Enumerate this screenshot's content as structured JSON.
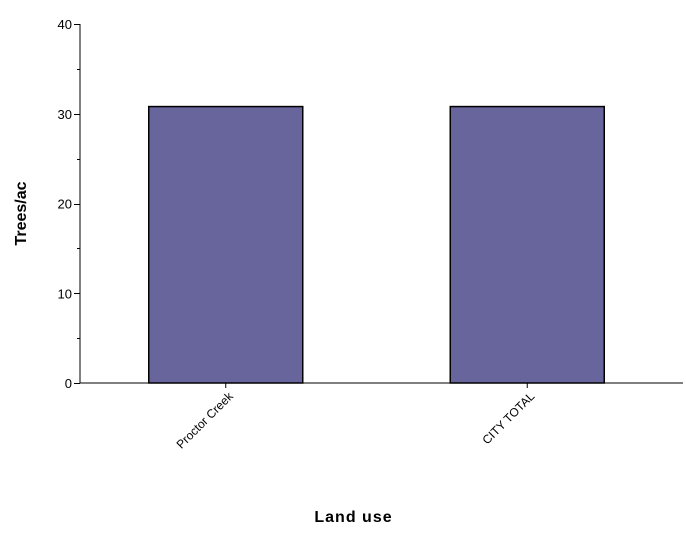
{
  "chart_data": {
    "type": "bar",
    "title": "",
    "xlabel": "Land use",
    "ylabel": "Trees/ac",
    "categories": [
      "Proctor Creek",
      "CITY TOTAL"
    ],
    "values": [
      30.8,
      30.8
    ],
    "ylim": [
      0,
      40
    ],
    "yticks": [
      "0",
      "10",
      "20",
      "30",
      "40"
    ],
    "minor_tick_step": 5,
    "grid": false,
    "legend": "none",
    "bar_color": "#67659b",
    "bar_outline": "#000000"
  }
}
